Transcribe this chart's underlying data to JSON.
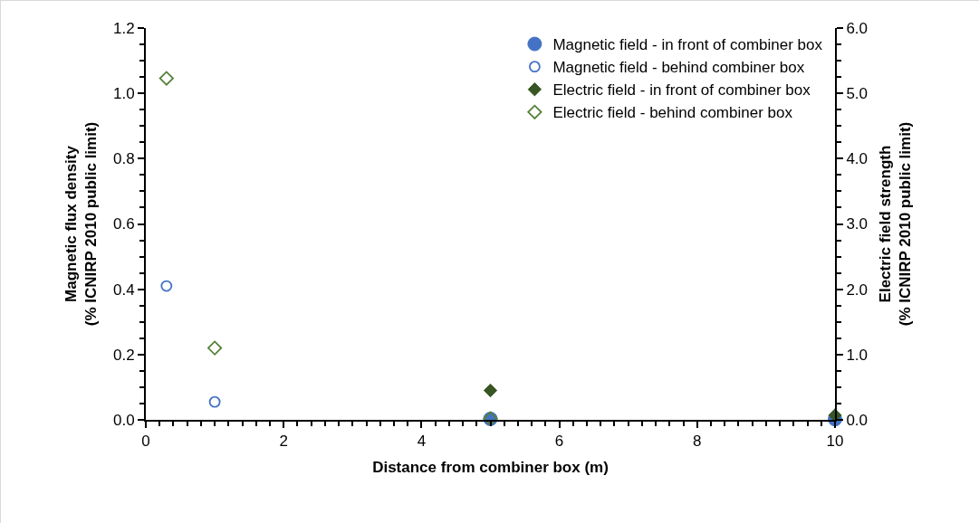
{
  "chart_data": {
    "type": "scatter",
    "xlabel": "Distance from combiner box (m)",
    "ylabel": "Magnetic flux density\n(% ICNIRP 2010 public limit)",
    "y2label": "Electric field strength\n(% ICNIRP 2010 public limit)",
    "x": [
      0.3,
      1,
      5,
      10
    ],
    "xlim": [
      0,
      10
    ],
    "xticks": [
      0,
      2,
      4,
      6,
      8,
      10
    ],
    "ylim": [
      0,
      1.2
    ],
    "yticks": [
      {
        "value": 0,
        "label": "0.0"
      },
      {
        "value": 0.2,
        "label": "0.2"
      },
      {
        "value": 0.4,
        "label": "0.4"
      },
      {
        "value": 0.6,
        "label": "0.6"
      },
      {
        "value": 0.8,
        "label": "0.8"
      },
      {
        "value": 1,
        "label": "1.0"
      },
      {
        "value": 1.2,
        "label": "1.2"
      }
    ],
    "y2lim": [
      0,
      6
    ],
    "y2ticks": [
      {
        "value": 0,
        "label": "0.0"
      },
      {
        "value": 1,
        "label": "1.0"
      },
      {
        "value": 2,
        "label": "2.0"
      },
      {
        "value": 3,
        "label": "3.0"
      },
      {
        "value": 4,
        "label": "4.0"
      },
      {
        "value": 5,
        "label": "5.0"
      },
      {
        "value": 6,
        "label": "6.0"
      }
    ],
    "grid": false,
    "legend": "top right",
    "series": [
      {
        "name": "Magnetic field - in front of combiner box",
        "color": "#4472c4",
        "marker": "circle",
        "values": [
          null,
          null,
          0.003,
          0.002
        ]
      },
      {
        "name": "Magnetic field - behind combiner box",
        "color": "#4472c4",
        "marker": "circle-open",
        "values": [
          0.41,
          0.055,
          null,
          null
        ]
      },
      {
        "name": "Electric field - in front of combiner box",
        "color": "#375623",
        "marker": "diamond",
        "axis": "y2",
        "values": [
          null,
          null,
          0.45,
          0.07
        ]
      },
      {
        "name": "Electric field - behind combiner box",
        "color": "#548235",
        "marker": "diamond-open",
        "axis": "y2",
        "values": [
          5.23,
          1.1,
          0.02,
          null
        ]
      }
    ]
  }
}
